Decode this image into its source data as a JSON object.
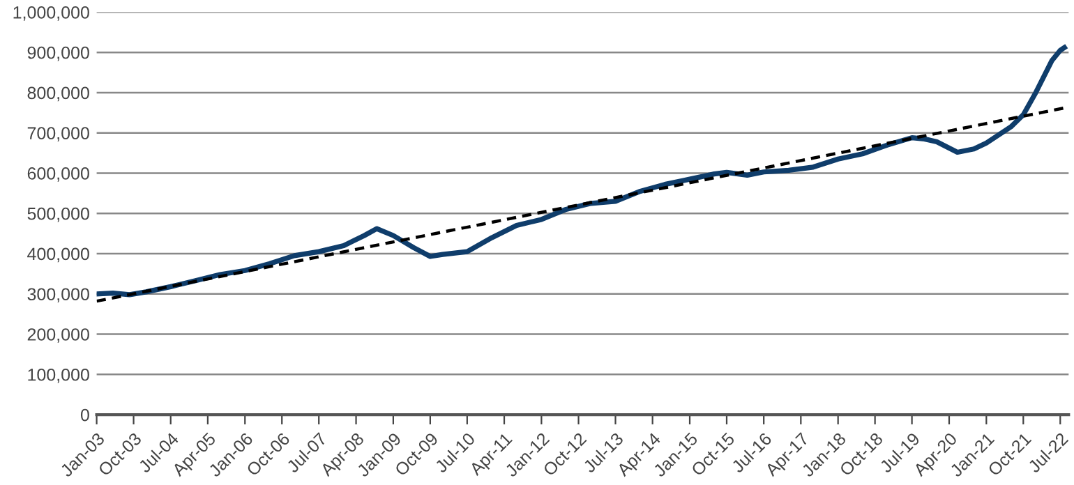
{
  "chart_data": {
    "type": "line",
    "grid": "y",
    "xlim": [
      "2003-01",
      "2022-09"
    ],
    "ylim": [
      0,
      1000000
    ],
    "yticks": [
      {
        "value": 0,
        "label": "0"
      },
      {
        "value": 100000,
        "label": "100,000"
      },
      {
        "value": 200000,
        "label": "200,000"
      },
      {
        "value": 300000,
        "label": "300,000"
      },
      {
        "value": 400000,
        "label": "400,000"
      },
      {
        "value": 500000,
        "label": "500,000"
      },
      {
        "value": 600000,
        "label": "600,000"
      },
      {
        "value": 700000,
        "label": "700,000"
      },
      {
        "value": 800000,
        "label": "800,000"
      },
      {
        "value": 900000,
        "label": "900,000"
      },
      {
        "value": 1000000,
        "label": "1,000,000"
      }
    ],
    "xticks": [
      {
        "value": "2003-01",
        "label": "Jan-03"
      },
      {
        "value": "2003-10",
        "label": "Oct-03"
      },
      {
        "value": "2004-07",
        "label": "Jul-04"
      },
      {
        "value": "2005-04",
        "label": "Apr-05"
      },
      {
        "value": "2006-01",
        "label": "Jan-06"
      },
      {
        "value": "2006-10",
        "label": "Oct-06"
      },
      {
        "value": "2007-07",
        "label": "Jul-07"
      },
      {
        "value": "2008-04",
        "label": "Apr-08"
      },
      {
        "value": "2009-01",
        "label": "Jan-09"
      },
      {
        "value": "2009-10",
        "label": "Oct-09"
      },
      {
        "value": "2010-07",
        "label": "Jul-10"
      },
      {
        "value": "2011-04",
        "label": "Apr-11"
      },
      {
        "value": "2012-01",
        "label": "Jan-12"
      },
      {
        "value": "2012-10",
        "label": "Oct-12"
      },
      {
        "value": "2013-07",
        "label": "Jul-13"
      },
      {
        "value": "2014-04",
        "label": "Apr-14"
      },
      {
        "value": "2015-01",
        "label": "Jan-15"
      },
      {
        "value": "2015-10",
        "label": "Oct-15"
      },
      {
        "value": "2016-07",
        "label": "Jul-16"
      },
      {
        "value": "2017-04",
        "label": "Apr-17"
      },
      {
        "value": "2018-01",
        "label": "Jan-18"
      },
      {
        "value": "2018-10",
        "label": "Oct-18"
      },
      {
        "value": "2019-07",
        "label": "Jul-19"
      },
      {
        "value": "2020-04",
        "label": "Apr-20"
      },
      {
        "value": "2021-01",
        "label": "Jan-21"
      },
      {
        "value": "2021-10",
        "label": "Oct-21"
      },
      {
        "value": "2022-07",
        "label": "Jul-22"
      }
    ],
    "series": [
      {
        "color": "#0f3d6b",
        "line_style": "solid",
        "x": [
          "2003-01",
          "2003-05",
          "2003-09",
          "2004-01",
          "2004-07",
          "2005-01",
          "2005-07",
          "2006-01",
          "2006-07",
          "2007-01",
          "2007-07",
          "2008-01",
          "2008-06",
          "2008-09",
          "2009-01",
          "2009-06",
          "2009-10",
          "2010-01",
          "2010-07",
          "2011-01",
          "2011-07",
          "2012-01",
          "2012-07",
          "2013-01",
          "2013-07",
          "2014-01",
          "2014-07",
          "2015-01",
          "2015-07",
          "2015-10",
          "2016-03",
          "2016-07",
          "2017-01",
          "2017-07",
          "2018-01",
          "2018-07",
          "2019-01",
          "2019-07",
          "2019-10",
          "2020-01",
          "2020-06",
          "2020-10",
          "2021-01",
          "2021-07",
          "2021-10",
          "2022-01",
          "2022-05",
          "2022-07",
          "2022-08"
        ],
        "values": [
          300000,
          302000,
          298000,
          305000,
          318000,
          333000,
          348000,
          358000,
          375000,
          395000,
          405000,
          420000,
          445000,
          462000,
          445000,
          415000,
          393000,
          398000,
          405000,
          440000,
          470000,
          485000,
          510000,
          525000,
          530000,
          555000,
          572000,
          585000,
          598000,
          602000,
          595000,
          603000,
          607000,
          615000,
          635000,
          648000,
          670000,
          688000,
          685000,
          678000,
          652000,
          660000,
          675000,
          715000,
          745000,
          800000,
          880000,
          905000,
          912000
        ]
      },
      {
        "color": "#000000",
        "line_style": "dashed",
        "x": [
          "2003-01",
          "2022-08"
        ],
        "values": [
          282000,
          762000
        ]
      }
    ]
  }
}
